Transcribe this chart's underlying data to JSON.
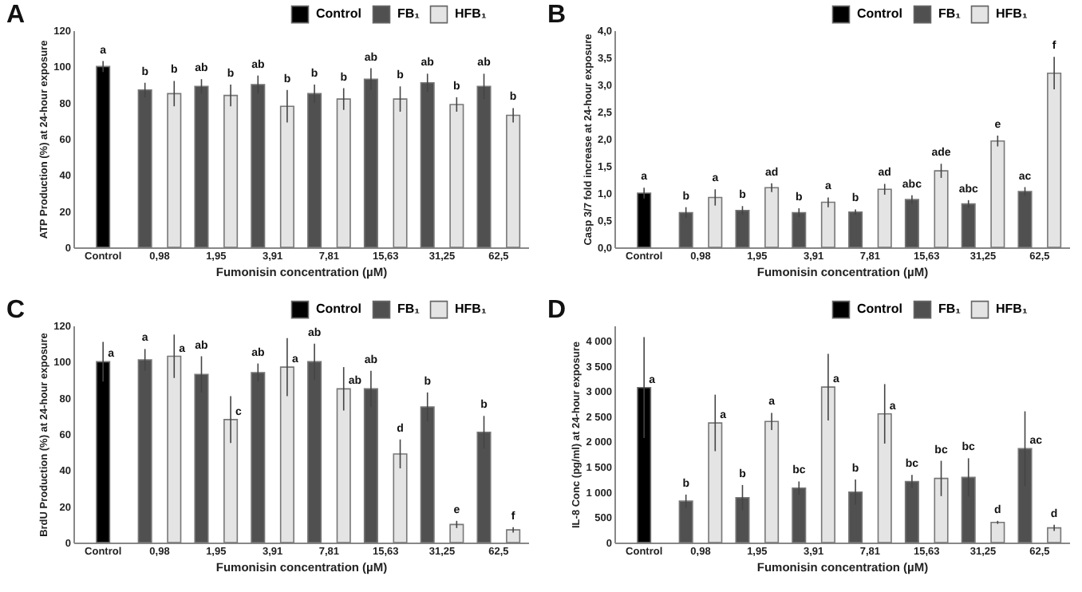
{
  "chart_data": [
    {
      "type": "bar",
      "title": "A",
      "xlabel": "Fumonisin concentration (µM)",
      "ylabel": "ATP Production (%) at 24-hour exposure",
      "categories": [
        "Control",
        "0,98",
        "1,95",
        "3,91",
        "7,81",
        "15,63",
        "31,25",
        "62,5"
      ],
      "ylim": [
        0,
        120
      ],
      "yticks": [
        0,
        20,
        40,
        60,
        80,
        100,
        120
      ],
      "legend": "top right",
      "grid": false,
      "series": [
        {
          "name": "Control",
          "color": "#000000",
          "values": [
            100,
            null,
            null,
            null,
            null,
            null,
            null,
            null
          ],
          "errors": [
            3,
            null,
            null,
            null,
            null,
            null,
            null,
            null
          ],
          "value_labels": [
            "a",
            null,
            null,
            null,
            null,
            null,
            null,
            null
          ]
        },
        {
          "name": "FB₁",
          "color": "#505050",
          "values": [
            null,
            87,
            89,
            90,
            85,
            93,
            91,
            89
          ],
          "errors": [
            null,
            4,
            4,
            5,
            5,
            6,
            5,
            7
          ],
          "value_labels": [
            null,
            "b",
            "ab",
            "ab",
            "b",
            "ab",
            "ab",
            "ab"
          ]
        },
        {
          "name": "HFB₁",
          "color": "#e4e4e4",
          "values": [
            null,
            85,
            84,
            78,
            82,
            82,
            79,
            73
          ],
          "errors": [
            null,
            7,
            6,
            9,
            6,
            7,
            4,
            4
          ],
          "value_labels": [
            null,
            "b",
            "b",
            "b",
            "b",
            "b",
            "b",
            "b"
          ]
        }
      ]
    },
    {
      "type": "bar",
      "title": "B",
      "xlabel": "Fumonisin concentration (µM)",
      "ylabel": "Casp 3/7 fold increase at 24-hour exposure",
      "categories": [
        "Control",
        "0,98",
        "1,95",
        "3,91",
        "7,81",
        "15,63",
        "31,25",
        "62,5"
      ],
      "ylim": [
        0,
        4
      ],
      "yticks": [
        {
          "value": 0,
          "label": "0,0"
        },
        {
          "value": 0.5,
          "label": "0,5"
        },
        {
          "value": 1,
          "label": "1,0"
        },
        {
          "value": 1.5,
          "label": "1,5"
        },
        {
          "value": 2,
          "label": "2,0"
        },
        {
          "value": 2.5,
          "label": "2,5"
        },
        {
          "value": 3,
          "label": "3,0"
        },
        {
          "value": 3.5,
          "label": "3,5"
        },
        {
          "value": 4,
          "label": "4,0"
        }
      ],
      "legend": "top right",
      "grid": false,
      "series": [
        {
          "name": "Control",
          "color": "#000000",
          "values": [
            1.0,
            null,
            null,
            null,
            null,
            null,
            null,
            null
          ],
          "errors": [
            0.1,
            null,
            null,
            null,
            null,
            null,
            null,
            null
          ],
          "value_labels": [
            "a",
            null,
            null,
            null,
            null,
            null,
            null,
            null
          ]
        },
        {
          "name": "FB₁",
          "color": "#505050",
          "values": [
            null,
            0.64,
            0.68,
            0.64,
            0.65,
            0.88,
            0.8,
            1.03
          ],
          "errors": [
            null,
            0.1,
            0.08,
            0.08,
            0.05,
            0.08,
            0.07,
            0.08
          ],
          "value_labels": [
            null,
            "b",
            "b",
            "b",
            "b",
            "abc",
            "abc",
            "ac"
          ]
        },
        {
          "name": "HFB₁",
          "color": "#e4e4e4",
          "values": [
            null,
            0.92,
            1.1,
            0.83,
            1.07,
            1.41,
            1.96,
            3.21
          ],
          "errors": [
            null,
            0.15,
            0.08,
            0.09,
            0.1,
            0.13,
            0.1,
            0.3
          ],
          "value_labels": [
            null,
            "a",
            "ad",
            "a",
            "ad",
            "ade",
            "e",
            "f"
          ]
        }
      ]
    },
    {
      "type": "bar",
      "title": "C",
      "xlabel": "Fumonisin concentration (µM)",
      "ylabel": "BrdU Production (%) at 24-hour exposure",
      "categories": [
        "Control",
        "0,98",
        "1,95",
        "3,91",
        "7,81",
        "15,63",
        "31,25",
        "62,5"
      ],
      "ylim": [
        0,
        120
      ],
      "yticks": [
        0,
        20,
        40,
        60,
        80,
        100,
        120
      ],
      "legend": "top right",
      "grid": false,
      "series": [
        {
          "name": "Control",
          "color": "#000000",
          "values": [
            100,
            null,
            null,
            null,
            null,
            null,
            null,
            null
          ],
          "errors": [
            11,
            null,
            null,
            null,
            null,
            null,
            null,
            null
          ],
          "value_labels": [
            "a",
            null,
            null,
            null,
            null,
            null,
            null,
            null
          ]
        },
        {
          "name": "FB₁",
          "color": "#505050",
          "values": [
            null,
            101,
            93,
            94,
            100,
            85,
            75,
            61
          ],
          "errors": [
            null,
            6,
            10,
            5,
            10,
            10,
            8,
            9
          ],
          "value_labels": [
            null,
            "a",
            "ab",
            "ab",
            "ab",
            "ab",
            "b",
            "b"
          ]
        },
        {
          "name": "HFB₁",
          "color": "#e4e4e4",
          "values": [
            null,
            103,
            68,
            97,
            85,
            49,
            10,
            7
          ],
          "errors": [
            null,
            12,
            13,
            16,
            12,
            8,
            2,
            1.5
          ],
          "value_labels": [
            null,
            "a",
            "c",
            "a",
            "ab",
            "d",
            "e",
            "f"
          ]
        }
      ]
    },
    {
      "type": "bar",
      "title": "D",
      "xlabel": "Fumonisin concentration (µM)",
      "ylabel": "IL-8 Conc (pg/ml) at 24-hour exposure",
      "categories": [
        "Control",
        "0,98",
        "1,95",
        "3,91",
        "7,81",
        "15,63",
        "31,25",
        "62,5"
      ],
      "ylim": [
        0,
        4300
      ],
      "yticks": [
        0,
        500,
        {
          "value": 1000,
          "label": "1 000"
        },
        {
          "value": 1500,
          "label": "1 500"
        },
        {
          "value": 2000,
          "label": "2 000"
        },
        {
          "value": 2500,
          "label": "2 500"
        },
        {
          "value": 3000,
          "label": "3 000"
        },
        {
          "value": 3500,
          "label": "3 500"
        },
        {
          "value": 4000,
          "label": "4 000"
        }
      ],
      "legend": "top right",
      "grid": false,
      "series": [
        {
          "name": "Control",
          "color": "#000000",
          "values": [
            3070,
            null,
            null,
            null,
            null,
            null,
            null,
            null
          ],
          "errors": [
            1000,
            null,
            null,
            null,
            null,
            null,
            null,
            null
          ],
          "value_labels": [
            "a",
            null,
            null,
            null,
            null,
            null,
            null,
            null
          ]
        },
        {
          "name": "FB₁",
          "color": "#505050",
          "values": [
            null,
            820,
            890,
            1080,
            1000,
            1210,
            1290,
            1860
          ],
          "errors": [
            null,
            130,
            250,
            130,
            250,
            130,
            380,
            740
          ],
          "value_labels": [
            null,
            "b",
            "b",
            "bc",
            "b",
            "bc",
            "bc",
            "ac"
          ]
        },
        {
          "name": "HFB₁",
          "color": "#e4e4e4",
          "values": [
            null,
            2370,
            2400,
            3080,
            2550,
            1270,
            400,
            290
          ],
          "errors": [
            null,
            560,
            170,
            660,
            590,
            350,
            30,
            60
          ],
          "value_labels": [
            null,
            "a",
            "a",
            "a",
            "a",
            "bc",
            "d",
            "d"
          ]
        }
      ]
    }
  ]
}
